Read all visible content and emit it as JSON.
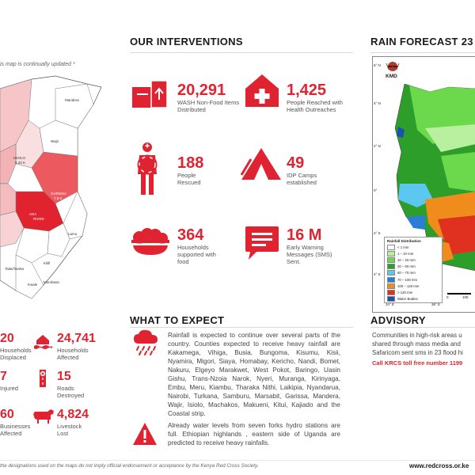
{
  "left_map": {
    "note": "is map is continually updated *",
    "labels": [
      "Mandera",
      "Wajir",
      "ISIOLO",
      "6.42 K",
      "GARISSA",
      "7.6 K",
      "Lamu",
      "Kilifi",
      "Taita/Taveta",
      "Kwale",
      "Mombasa",
      "ANA",
      "RIVER"
    ]
  },
  "left_stats": [
    {
      "num": "20",
      "label": "Households Displaced"
    },
    {
      "num": "24,741",
      "label": "Households Affected"
    },
    {
      "num": "7",
      "label": "Injured"
    },
    {
      "num": "15",
      "label": "Roads Destroyed"
    },
    {
      "num": "60",
      "label": "Businesses Affected"
    },
    {
      "num": "4,824",
      "label": "Livestock Lost"
    }
  ],
  "interventions": {
    "title": "OUR INTERVENTIONS",
    "items": [
      {
        "num": "20,291",
        "label": "WASH Non-Food Items Distributed",
        "icon": "wash-box-icon"
      },
      {
        "num": "1,425",
        "label": "People Reached with Health Outreaches",
        "icon": "health-house-icon"
      },
      {
        "num": "188",
        "label": "People Rescued",
        "icon": "rescue-person-icon"
      },
      {
        "num": "49",
        "label": "IDP Camps established",
        "icon": "tent-icon"
      },
      {
        "num": "364",
        "label": "Households supported with food",
        "icon": "food-bowl-icon"
      },
      {
        "num": "16 M",
        "label": "Early Warning Messages (SMS) Sent.",
        "icon": "sms-icon"
      }
    ]
  },
  "expect": {
    "title": "WHAT TO EXPECT",
    "para1": "Rainfall is expected to continue over several parts of the country. Counties expected to receive heavy rainfall are Kakamega, Vihiga, Busia, Bungoma, Kisumu, Kisii, Nyamira, Migori, Siaya, Homabay, Kericho, Nandi, Bomet, Nakuru, Elgeyo Marakwet, West Pokot, Baringo, Uasin Gishu, Trans-Nzoia Narok, Nyeri, Muranga, Kirinyaga, Embu, Meru, Kiambu, Tharaka Nithi, Laikipia, Nyandarua, Nairobi, Turkana, Samburu, Marsabit, Garissa, Mandera, Wajir, Isiolo, Machakos, Makueni, Kitui, Kajiado and the Coastal strip.",
    "para2": "Already water levels from seven forks hydro stations are full. Ethiopian highlands , eastern side of Uganda are predicted to receive heavy rainfalls."
  },
  "forecast": {
    "title": "RAIN FORECAST 23",
    "agency": "KMD",
    "lat_labels": [
      "6° N",
      "4° N",
      "2° N",
      "0°",
      "2° S",
      "4° S"
    ],
    "lon_labels": [
      "34° E",
      "36° E"
    ],
    "scale_labels": [
      "0",
      "105"
    ],
    "legend_title": "Rainfall Distribution",
    "legend": [
      {
        "label": "< 1 mm",
        "color": "#ffffff"
      },
      {
        "label": "1 – 10 mm",
        "color": "#b8f0a0"
      },
      {
        "label": "10 – 20 mm",
        "color": "#6cd94c"
      },
      {
        "label": "20 – 50 mm",
        "color": "#2e9e2a"
      },
      {
        "label": "50 – 70 mm",
        "color": "#5cc8f0"
      },
      {
        "label": "70 – 100 mm",
        "color": "#2a7fd4"
      },
      {
        "label": "100 – 120 mm",
        "color": "#f08c1c"
      },
      {
        "label": "> 120 mm",
        "color": "#e03020"
      },
      {
        "label": "Water Bodies",
        "color": "#1f4fb0"
      }
    ]
  },
  "advisory": {
    "title": "ADVISORY",
    "text": "Communities in high-risk areas u shared through mass media and Safaricom sent sms in 23 flood hi",
    "call": "Call KRCS toll free number 1199"
  },
  "footer": {
    "disclaimer": "the designations used on the maps do not imply official endorsement or acceptance by the Kenya Red Cross Society.",
    "url": "www.redcross.or.ke"
  },
  "colors": {
    "accent": "#e02330"
  }
}
